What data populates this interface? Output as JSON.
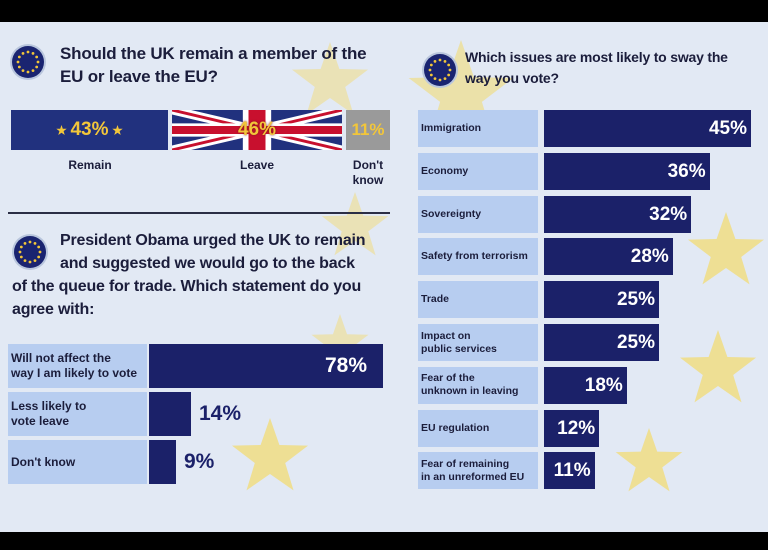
{
  "chart_data": [
    {
      "type": "bar",
      "title": "Should the UK remain a member of the EU or leave the EU?",
      "categories": [
        "Remain",
        "Leave",
        "Don't know"
      ],
      "values": [
        43,
        46,
        11
      ],
      "value_labels": [
        "43%",
        "46%",
        "11%"
      ]
    },
    {
      "type": "bar",
      "title": "President Obama urged the UK to remain and suggested we would go to the back of the queue for trade. Which statement do you agree with:",
      "categories": [
        "Will not affect the way I am likely to vote",
        "Less likely to vote leave",
        "Don't know"
      ],
      "values": [
        78,
        14,
        9
      ],
      "value_labels": [
        "78%",
        "14%",
        "9%"
      ]
    },
    {
      "type": "bar",
      "title": "Which issues are most likely to sway the way you vote?",
      "categories": [
        "Immigration",
        "Economy",
        "Sovereignty",
        "Safety from terrorism",
        "Trade",
        "Impact on public services",
        "Fear of the unknown in leaving",
        "EU regulation",
        "Fear of remaining in an unreformed EU"
      ],
      "values": [
        45,
        36,
        32,
        28,
        25,
        25,
        18,
        12,
        11
      ],
      "value_labels": [
        "45%",
        "36%",
        "32%",
        "28%",
        "25%",
        "25%",
        "18%",
        "12%",
        "11%"
      ]
    }
  ],
  "left": {
    "q1_line1": "Should the UK remain a member of the",
    "q1_line2": "EU or leave the EU?",
    "ref_labels": [
      "Remain",
      "Leave",
      "Don't",
      "know"
    ],
    "q2_line1": "President Obama urged the UK to remain",
    "q2_line2": "and suggested we would go to the back",
    "q2_line3": "of the queue for trade. Which statement do you",
    "q2_line4": "agree with:",
    "row_labels": [
      [
        "Will not affect the",
        "way I am likely to vote"
      ],
      [
        "Less likely to",
        "vote leave"
      ],
      [
        "Don't know"
      ]
    ]
  },
  "right": {
    "q_line1": "Which issues are most likely to sway the",
    "q_line2": "way you vote?",
    "row_labels": [
      [
        "Immigration"
      ],
      [
        "Economy"
      ],
      [
        "Sovereignty"
      ],
      [
        "Safety from terrorism"
      ],
      [
        "Trade"
      ],
      [
        "Impact on",
        "public services"
      ],
      [
        "Fear of the",
        "unknown in leaving"
      ],
      [
        "EU regulation"
      ],
      [
        "Fear of remaining",
        "in an unreformed EU"
      ]
    ]
  },
  "colors": {
    "bar": "#1b2169",
    "label_bg": "#b7cdf0",
    "eu_blue": "#21317e",
    "union_red": "#c8102e",
    "dont_know_gray": "#9a9a9a",
    "pct_gold": "#f2c63a",
    "star_yellow": "#f3da6b",
    "text": "#1b1d3b"
  },
  "icons": [
    "eu-flag-icon",
    "union-jack-icon",
    "star-icon"
  ]
}
